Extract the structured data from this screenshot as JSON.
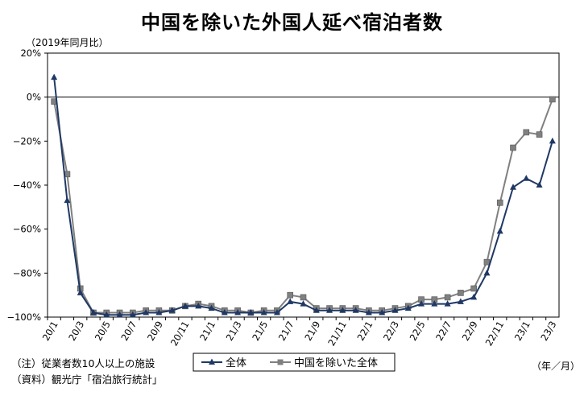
{
  "chart_data": {
    "type": "line",
    "title": "中国を除いた外国人延べ宿泊者数",
    "unit_label": "（2019年同月比）",
    "x_unit_label": "（年／月）",
    "categories": [
      "20/1",
      "20/2",
      "20/3",
      "20/4",
      "20/5",
      "20/6",
      "20/7",
      "20/8",
      "20/9",
      "20/10",
      "20/11",
      "20/12",
      "21/1",
      "21/2",
      "21/3",
      "21/4",
      "21/5",
      "21/6",
      "21/7",
      "21/8",
      "21/9",
      "21/10",
      "21/11",
      "21/12",
      "22/1",
      "22/2",
      "22/3",
      "22/4",
      "22/5",
      "22/6",
      "22/7",
      "22/8",
      "22/9",
      "22/10",
      "22/11",
      "22/12",
      "23/1",
      "23/2",
      "23/3"
    ],
    "tick_labels": [
      "20/1",
      "20/3",
      "20/5",
      "20/7",
      "20/9",
      "20/11",
      "21/1",
      "21/3",
      "21/5",
      "21/7",
      "21/9",
      "21/11",
      "22/1",
      "22/3",
      "22/5",
      "22/7",
      "22/9",
      "22/11",
      "23/1",
      "23/3"
    ],
    "ylim": [
      -100,
      20
    ],
    "yticks": [
      20,
      0,
      -20,
      -40,
      -60,
      -80,
      -100
    ],
    "ytick_labels": [
      "20%",
      "0%",
      "−20%",
      "−40%",
      "−60%",
      "−80%",
      "−100%"
    ],
    "grid": false,
    "legend_position": "bottom",
    "series": [
      {
        "name": "全体",
        "color": "#1f3864",
        "marker": "triangle",
        "values": [
          9,
          -47,
          -89,
          -98,
          -99,
          -99,
          -99,
          -98,
          -98,
          -97,
          -95,
          -95,
          -96,
          -98,
          -98,
          -98,
          -98,
          -98,
          -93,
          -94,
          -97,
          -97,
          -97,
          -97,
          -98,
          -98,
          -97,
          -96,
          -94,
          -94,
          -94,
          -93,
          -91,
          -80,
          -61,
          -41,
          -37,
          -40,
          -20
        ]
      },
      {
        "name": "中国を除いた全体",
        "color": "#808080",
        "marker": "square",
        "values": [
          -2,
          -35,
          -87,
          -98,
          -98,
          -98,
          -98,
          -97,
          -97,
          -97,
          -95,
          -94,
          -95,
          -97,
          -97,
          -98,
          -97,
          -97,
          -90,
          -91,
          -96,
          -96,
          -96,
          -96,
          -97,
          -97,
          -96,
          -95,
          -92,
          -92,
          -91,
          -89,
          -87,
          -75,
          -48,
          -23,
          -16,
          -17,
          -1
        ]
      }
    ]
  },
  "notes": [
    "（注）従業者数10人以上の施設",
    "（資料）観光庁「宿泊旅行統計」"
  ]
}
